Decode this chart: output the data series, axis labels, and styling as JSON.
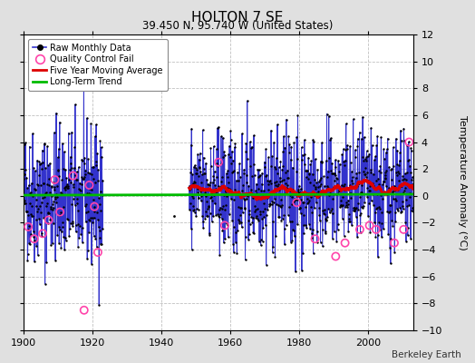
{
  "title": "HOLTON 7 SE",
  "subtitle": "39.450 N, 95.740 W (United States)",
  "ylabel": "Temperature Anomaly (°C)",
  "attribution": "Berkeley Earth",
  "xlim": [
    1900,
    2013
  ],
  "ylim": [
    -10,
    12
  ],
  "yticks": [
    -10,
    -8,
    -6,
    -4,
    -2,
    0,
    2,
    4,
    6,
    8,
    10,
    12
  ],
  "xticks": [
    1900,
    1920,
    1940,
    1960,
    1980,
    2000
  ],
  "bg_color": "#e0e0e0",
  "plot_bg_color": "#ffffff",
  "grid_color": "#b0b0b0",
  "raw_line_color": "#3333cc",
  "raw_dot_color": "#000000",
  "qc_color": "#ff44aa",
  "moving_avg_color": "#dd0000",
  "trend_color": "#00bb00",
  "seed": 42,
  "figsize": [
    5.24,
    4.0
  ],
  "dpi": 100
}
